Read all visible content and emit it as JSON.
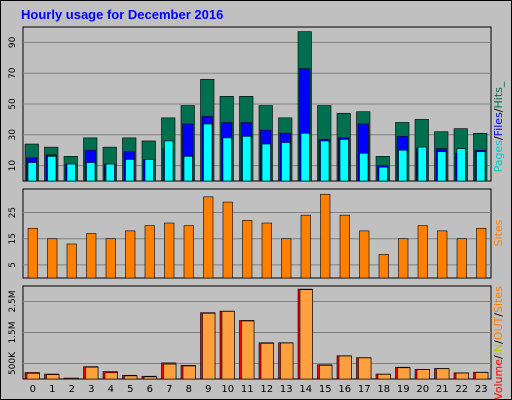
{
  "chart_data": [
    {
      "type": "bar",
      "title": "Hourly usage for December 2016",
      "categories": [
        "0",
        "1",
        "2",
        "3",
        "4",
        "5",
        "6",
        "7",
        "8",
        "9",
        "10",
        "11",
        "12",
        "13",
        "14",
        "15",
        "16",
        "17",
        "18",
        "19",
        "20",
        "21",
        "22",
        "23"
      ],
      "series": [
        {
          "name": "Hits",
          "color": "#006f4f",
          "values": [
            24,
            22,
            16,
            28,
            22,
            28,
            26,
            41,
            49,
            66,
            55,
            55,
            49,
            41,
            97,
            49,
            44,
            45,
            16,
            38,
            40,
            32,
            34,
            31
          ]
        },
        {
          "name": "Files",
          "color": "#0000ff",
          "values": [
            15,
            17,
            11,
            20,
            11,
            19,
            14,
            21,
            37,
            42,
            38,
            38,
            33,
            31,
            73,
            27,
            28,
            37,
            10,
            29,
            21,
            21,
            18,
            20
          ]
        },
        {
          "name": "Pages",
          "color": "#00ffff",
          "values": [
            12,
            16,
            11,
            12,
            11,
            14,
            14,
            26,
            16,
            37,
            28,
            29,
            24,
            25,
            31,
            26,
            27,
            18,
            9,
            20,
            22,
            19,
            21,
            19
          ]
        }
      ],
      "ylabels": [
        "10",
        "30",
        "50",
        "70",
        "90"
      ],
      "ylim": [
        0,
        100
      ],
      "legend": [
        "Pages",
        "/",
        "Files",
        "/",
        "Hits",
        "_"
      ]
    },
    {
      "type": "bar",
      "categories": [
        "0",
        "1",
        "2",
        "3",
        "4",
        "5",
        "6",
        "7",
        "8",
        "9",
        "10",
        "11",
        "12",
        "13",
        "14",
        "15",
        "16",
        "17",
        "18",
        "19",
        "20",
        "21",
        "22",
        "23"
      ],
      "series": [
        {
          "name": "Sites",
          "color": "#ff8000",
          "values": [
            19,
            15,
            13,
            17,
            15,
            18,
            20,
            21,
            20,
            31,
            29,
            22,
            21,
            15,
            24,
            32,
            24,
            18,
            9,
            15,
            20,
            18,
            15,
            19
          ]
        }
      ],
      "ylabels": [
        "5",
        "15",
        "25"
      ],
      "ylim": [
        0,
        34
      ],
      "legend": [
        "Sites"
      ]
    },
    {
      "type": "bar",
      "categories": [
        "0",
        "1",
        "2",
        "3",
        "4",
        "5",
        "6",
        "7",
        "8",
        "9",
        "10",
        "11",
        "12",
        "13",
        "14",
        "15",
        "16",
        "17",
        "18",
        "19",
        "20",
        "21",
        "22",
        "23"
      ],
      "series": [
        {
          "name": "Volume",
          "color": "#ff0000",
          "values": [
            210,
            160,
            30,
            400,
            240,
            120,
            90,
            520,
            440,
            2140,
            2190,
            1890,
            1170,
            1170,
            2900,
            460,
            750,
            690,
            160,
            380,
            310,
            340,
            200,
            220
          ]
        },
        {
          "name": "IN/OUT",
          "color": "#ffa040",
          "values": [
            180,
            140,
            25,
            380,
            200,
            100,
            70,
            480,
            420,
            2120,
            2180,
            1870,
            1150,
            1160,
            2880,
            440,
            740,
            680,
            150,
            360,
            300,
            330,
            190,
            210
          ]
        }
      ],
      "ylabels": [
        "500K",
        "1.5M",
        "2.5M"
      ],
      "ylim": [
        0,
        3000
      ],
      "legend": [
        "Volume",
        "/",
        "IN",
        "/",
        "OUT",
        "/",
        "Sites"
      ]
    }
  ],
  "legend_colors": {
    "pages": "#00cccc",
    "files": "#0000ff",
    "hits": "#006f4f",
    "sites": "#ff8000",
    "volume": "#ff0000",
    "in": "#c0c000",
    "out": "#ff8000",
    "sep": "#000000"
  }
}
